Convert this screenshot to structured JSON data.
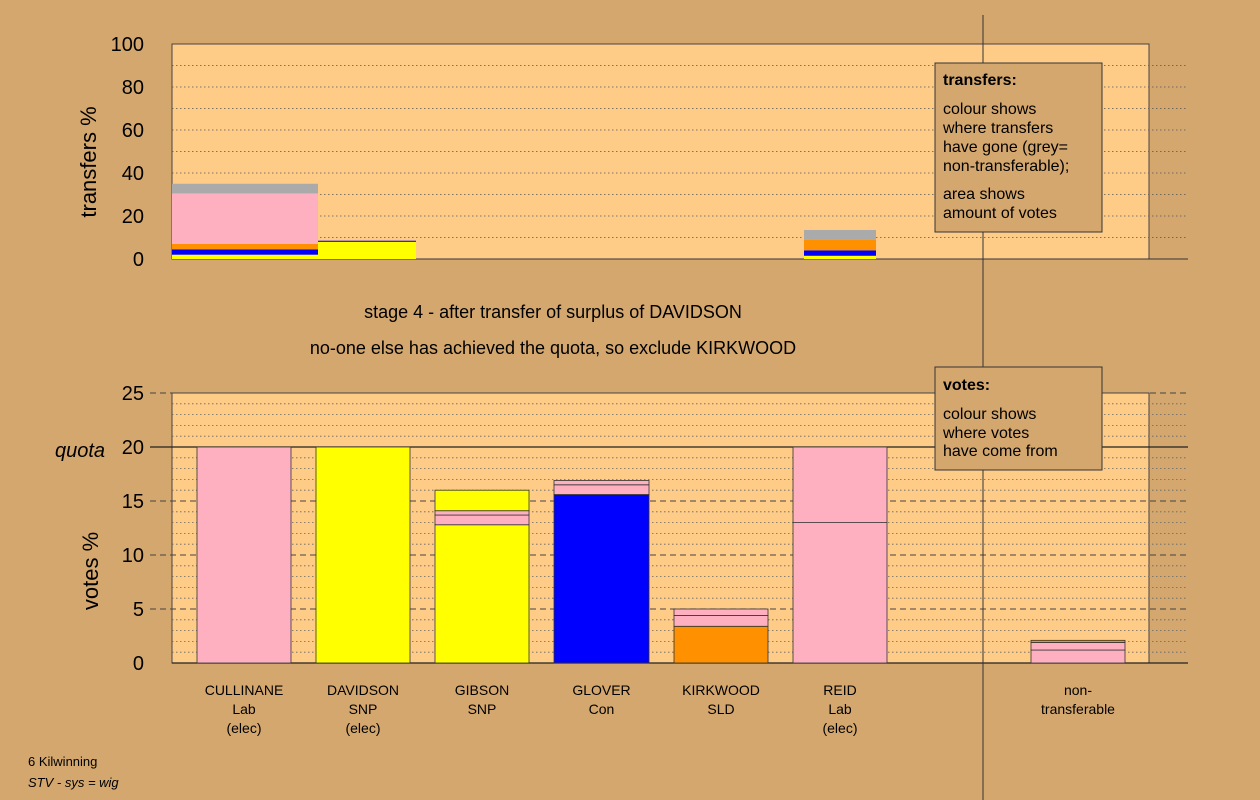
{
  "colors": {
    "background": "#d4a76f",
    "plot": "#ffcc88",
    "Lab": "#ffb0c0",
    "SNP": "#ffff00",
    "Con": "#0000ff",
    "SLD": "#ff9000",
    "nontransferable": "#aaaaaa"
  },
  "stage_text": {
    "line1": "stage 4 - after transfer of surplus of DAVIDSON",
    "line2": "no-one else has achieved the quota, so exclude KIRKWOOD"
  },
  "footer": {
    "line1": "6 Kilwinning",
    "line2": "STV - sys = wig"
  },
  "legend_transfers": {
    "title": "transfers:",
    "lines": [
      "colour shows",
      "where transfers",
      "have gone (grey=",
      "non-transferable);"
    ],
    "lines2": [
      "area shows",
      "amount of votes"
    ]
  },
  "legend_votes": {
    "title": "votes:",
    "lines": [
      "colour shows",
      "where votes",
      "have come from"
    ]
  },
  "chart_data": [
    {
      "type": "bar",
      "ylabel": "transfers %",
      "ylim": [
        0,
        100
      ],
      "yticks": [
        0,
        20,
        40,
        60,
        80,
        100
      ],
      "stacked": true,
      "bars": [
        {
          "segments": [
            {
              "party": "SNP",
              "value": 2.0
            },
            {
              "party": "Con",
              "value": 2.5
            },
            {
              "party": "SLD",
              "value": 2.5
            },
            {
              "party": "Lab",
              "value": 23.5
            },
            {
              "party": "nontransferable",
              "value": 4.5
            }
          ]
        },
        {
          "segments": [
            {
              "party": "SNP",
              "value": 8.0
            },
            {
              "party": "Con",
              "value": 0.5
            }
          ]
        },
        {
          "segments": [
            {
              "party": "SNP",
              "value": 1.5
            },
            {
              "party": "Con",
              "value": 2.5
            },
            {
              "party": "SLD",
              "value": 5.0
            },
            {
              "party": "nontransferable",
              "value": 4.5
            }
          ]
        }
      ]
    },
    {
      "type": "bar",
      "ylabel": "votes %",
      "quota_label": "quota",
      "quota": 20,
      "ylim": [
        0,
        25
      ],
      "yticks": [
        0,
        5,
        10,
        15,
        20,
        25
      ],
      "stacked": true,
      "categories": [
        {
          "name": "CULLINANE",
          "party": "Lab",
          "status": "(elec)"
        },
        {
          "name": "DAVIDSON",
          "party": "SNP",
          "status": "(elec)"
        },
        {
          "name": "GIBSON",
          "party": "SNP",
          "status": ""
        },
        {
          "name": "GLOVER",
          "party": "Con",
          "status": ""
        },
        {
          "name": "KIRKWOOD",
          "party": "SLD",
          "status": ""
        },
        {
          "name": "REID",
          "party": "Lab",
          "status": "(elec)"
        },
        {
          "name": "non-",
          "party": "transferable",
          "status": ""
        }
      ],
      "bars": [
        {
          "segments": [
            {
              "party": "Lab",
              "value": 20.0
            }
          ]
        },
        {
          "segments": [
            {
              "party": "SNP",
              "value": 20.0
            }
          ]
        },
        {
          "segments": [
            {
              "party": "SNP",
              "value": 12.8
            },
            {
              "party": "Lab",
              "value": 0.9
            },
            {
              "party": "Lab",
              "value": 0.4
            },
            {
              "party": "SNP",
              "value": 1.9
            }
          ]
        },
        {
          "segments": [
            {
              "party": "Con",
              "value": 15.6
            },
            {
              "party": "Lab",
              "value": 0.9
            },
            {
              "party": "Lab",
              "value": 0.4
            }
          ]
        },
        {
          "segments": [
            {
              "party": "SLD",
              "value": 3.4
            },
            {
              "party": "Lab",
              "value": 1.0
            },
            {
              "party": "Lab",
              "value": 0.6
            }
          ]
        },
        {
          "segments": [
            {
              "party": "Lab",
              "value": 13.0
            },
            {
              "party": "Lab",
              "value": 7.0
            }
          ]
        },
        {
          "segments": [
            {
              "party": "Lab",
              "value": 1.2
            },
            {
              "party": "Lab",
              "value": 0.7
            },
            {
              "party": "SLD",
              "value": 0.2
            }
          ]
        }
      ]
    }
  ]
}
